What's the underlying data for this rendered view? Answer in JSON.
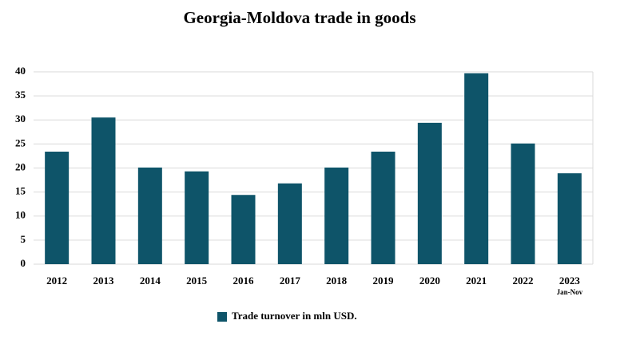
{
  "chart_data": {
    "type": "bar",
    "title": "Georgia-Moldova trade in goods",
    "categories": [
      "2012",
      "2013",
      "2014",
      "2015",
      "2016",
      "2017",
      "2018",
      "2019",
      "2020",
      "2021",
      "2022",
      "2023"
    ],
    "category_note": "Jan-Nov",
    "series": [
      {
        "name": "Trade turnover in mln USD.",
        "color": "#0e5469",
        "values": [
          23.4,
          30.5,
          20.1,
          19.3,
          14.4,
          16.8,
          20.1,
          23.4,
          29.4,
          39.7,
          25.1,
          18.9
        ]
      }
    ],
    "ylim": [
      0,
      40
    ],
    "yticks": [
      0,
      5,
      10,
      15,
      20,
      25,
      30,
      35,
      40
    ],
    "grid": true,
    "legend": "bottom"
  }
}
